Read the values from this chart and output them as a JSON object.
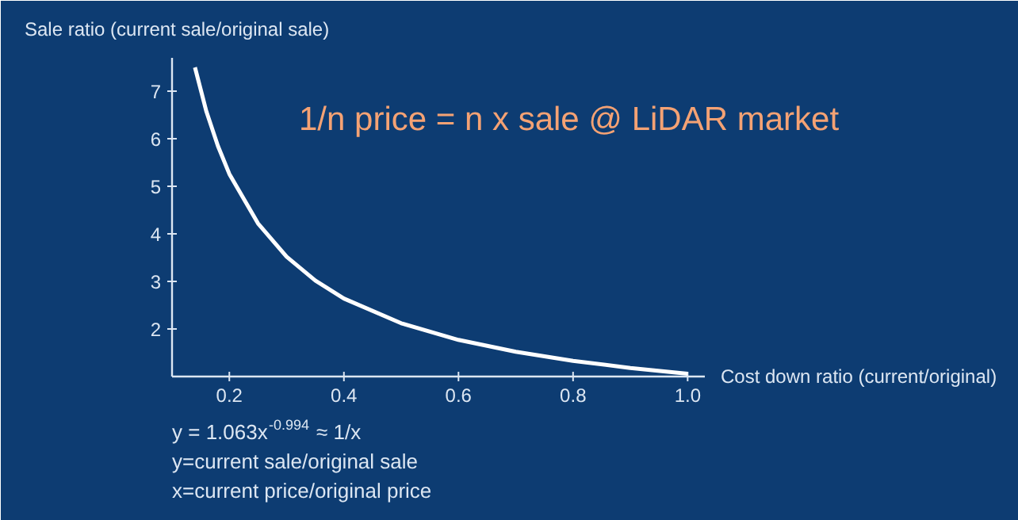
{
  "chart_data": {
    "type": "line",
    "title": "1/n price = n x sale @ LiDAR market",
    "xlabel": "Cost down ratio (current/original)",
    "ylabel": "Sale ratio (current sale/original sale)",
    "x": [
      0.14,
      0.16,
      0.18,
      0.2,
      0.25,
      0.3,
      0.35,
      0.4,
      0.5,
      0.6,
      0.7,
      0.8,
      0.9,
      1.0
    ],
    "series": [
      {
        "color": "#ffffff",
        "values": [
          7.5,
          6.57,
          5.85,
          5.26,
          4.22,
          3.52,
          3.02,
          2.64,
          2.12,
          1.77,
          1.52,
          1.33,
          1.18,
          1.06
        ]
      }
    ],
    "xlim": [
      0.1,
      1.03
    ],
    "ylim": [
      1,
      7.7
    ],
    "xticks": [
      0.2,
      0.4,
      0.6,
      0.8,
      {
        "value": 1.0,
        "label": "1.0"
      }
    ],
    "yticks": [
      2,
      3,
      4,
      5,
      6,
      7
    ],
    "grid": false,
    "marker": "none",
    "line_style": "solid",
    "annotations": [
      "y = 1.063x$^{-0.994}$ ≈ 1/x",
      "y=current sale/original sale",
      "x=current price/original price"
    ]
  }
}
